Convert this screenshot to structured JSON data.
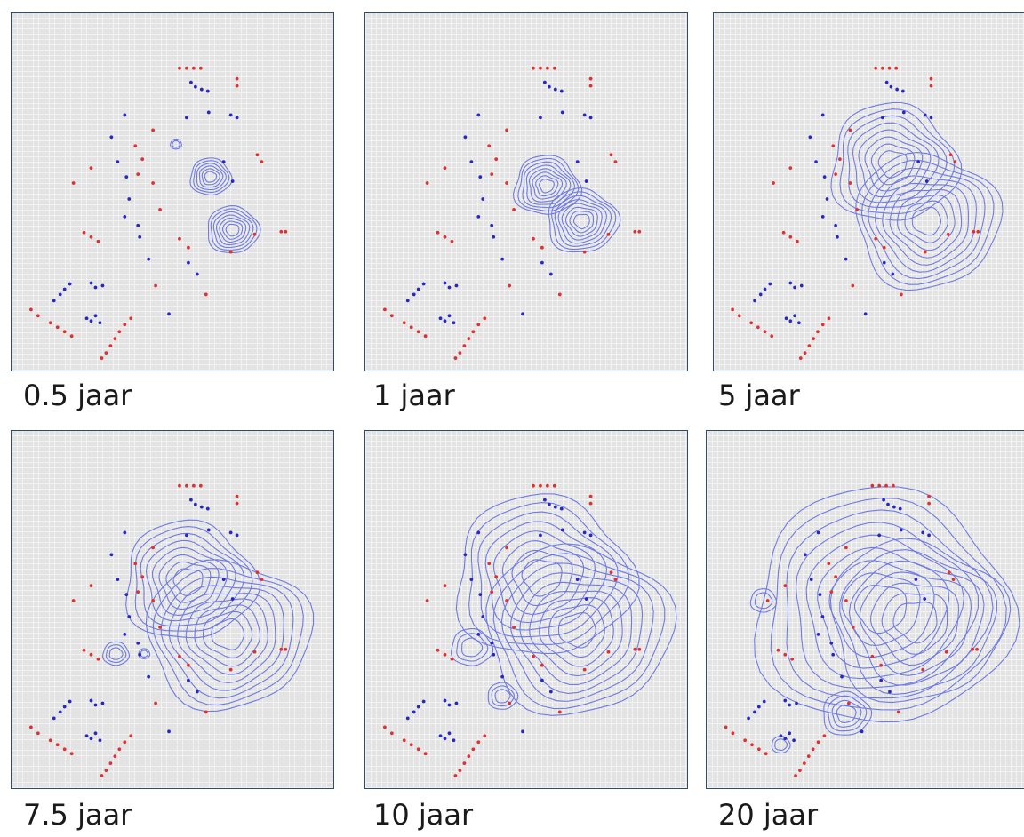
{
  "panels": [
    {
      "label": "0.5 jaar"
    },
    {
      "label": "1 jaar"
    },
    {
      "label": "5 jaar"
    },
    {
      "label": "7.5 jaar"
    },
    {
      "label": "10 jaar"
    },
    {
      "label": "20 jaar"
    }
  ],
  "colors": {
    "red_points": "#e03030",
    "blue_points": "#2727c8",
    "contours": "#6d79e6",
    "panel_background": "#e3e3e3",
    "panel_border": "#2f4c6c"
  }
}
